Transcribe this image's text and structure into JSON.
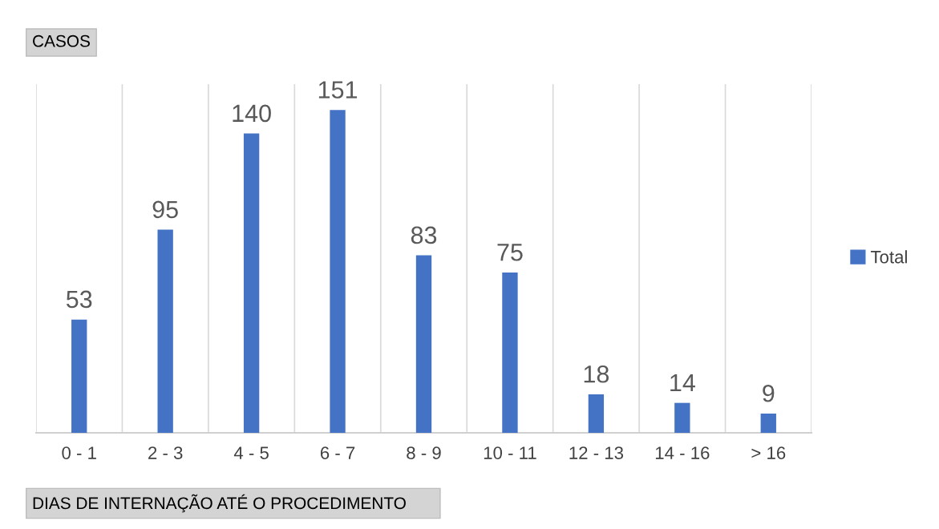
{
  "chart_data": {
    "type": "bar",
    "ylabel": "CASOS",
    "xlabel": "DIAS DE INTERNAÇÃO ATÉ O PROCEDIMENTO",
    "categories": [
      "0 - 1",
      "2 - 3",
      "4 - 5",
      "6 - 7",
      "8 - 9",
      "10 - 11",
      "12 - 13",
      "14 - 16",
      "> 16"
    ],
    "series": [
      {
        "name": "Total",
        "color": "#4472c4",
        "values": [
          53,
          95,
          140,
          151,
          83,
          75,
          18,
          14,
          9
        ]
      }
    ],
    "data_labels": true,
    "grid": "x",
    "legend": "right"
  }
}
